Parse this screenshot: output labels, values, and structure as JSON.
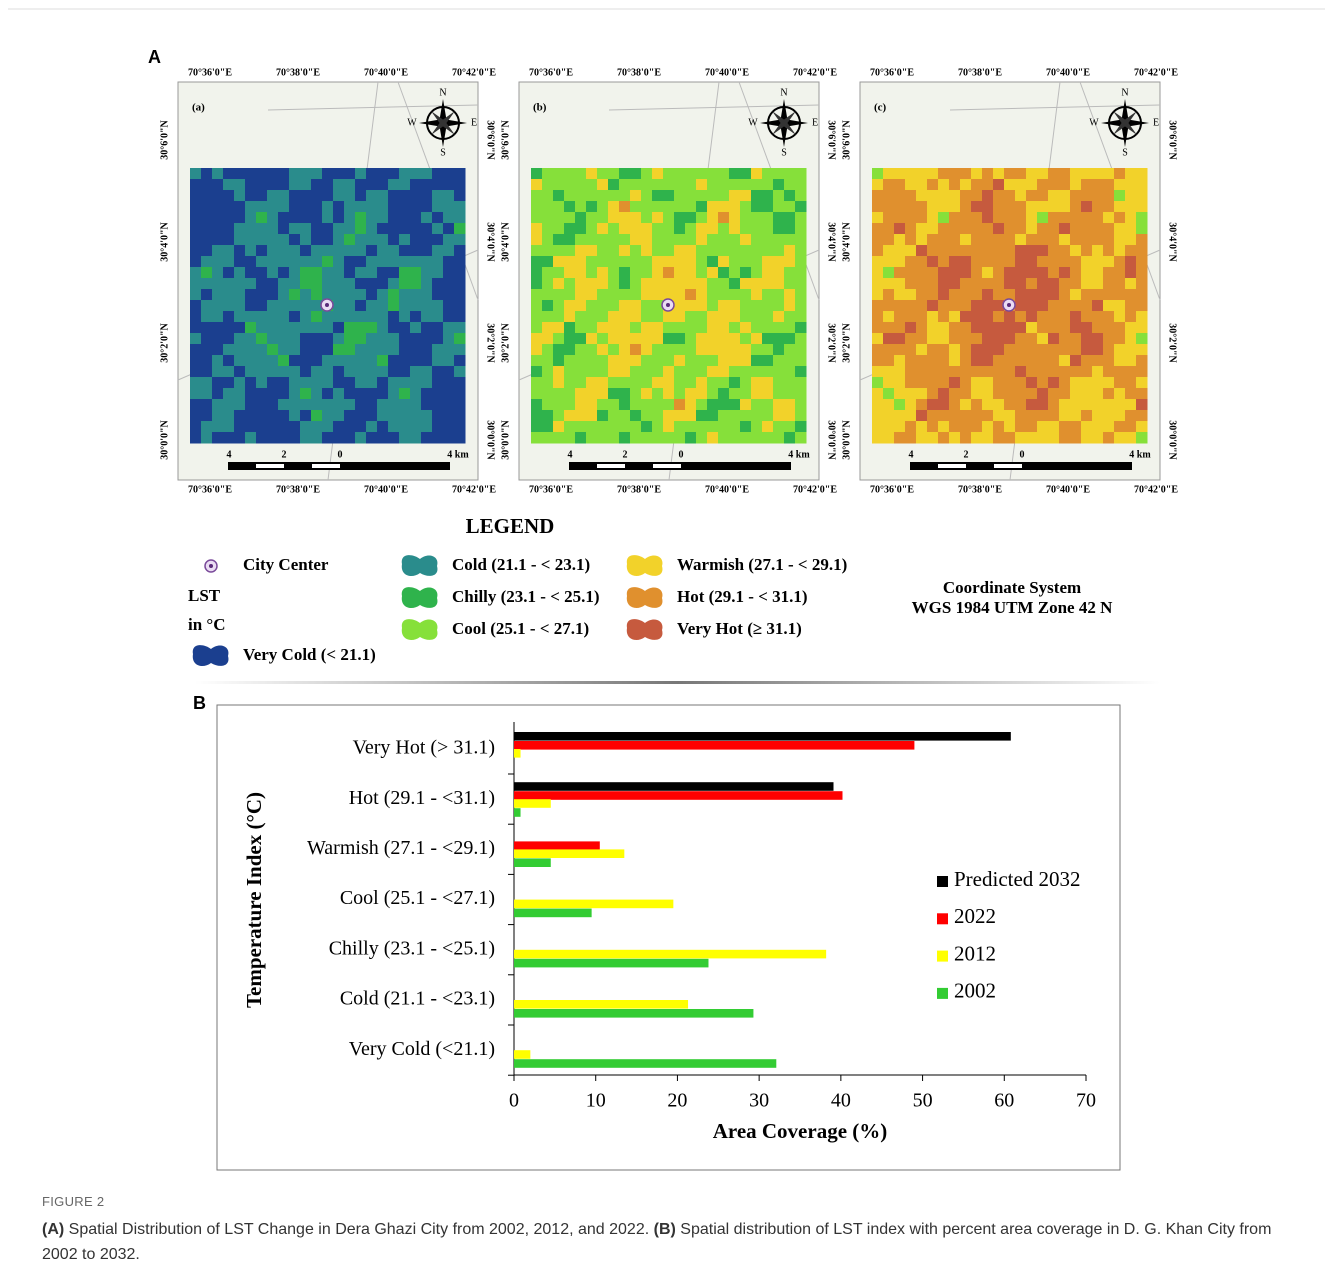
{
  "panel_a": {
    "tag": "A",
    "maps": [
      {
        "label": "(a)"
      },
      {
        "label": "(b)"
      },
      {
        "label": "(c)"
      }
    ],
    "lon_labels": [
      "70°36'0\"E",
      "70°38'0\"E",
      "70°40'0\"E",
      "70°42'0\"E"
    ],
    "lat_labels": [
      "30°6'0\"N",
      "30°4'0\"N",
      "30°2'0\"N",
      "30°0'0\"N"
    ],
    "scale_labels": [
      "4",
      "2",
      "0",
      "4 km"
    ],
    "compass": [
      "N",
      "E",
      "S",
      "W"
    ]
  },
  "legend": {
    "title": "LEGEND",
    "city_center": "City Center",
    "lst": "LST",
    "unit": "in °C",
    "classes": [
      {
        "label": "Very Cold (< 21.1)",
        "color": "#1b3f8f"
      },
      {
        "label": "Cold (21.1 - < 23.1)",
        "color": "#2a8c8c"
      },
      {
        "label": "Chilly (23.1 - < 25.1)",
        "color": "#2fb34c"
      },
      {
        "label": "Cool (25.1 - < 27.1)",
        "color": "#86e03a"
      },
      {
        "label": "Warmish (27.1 - < 29.1)",
        "color": "#f2d22a"
      },
      {
        "label": "Hot (29.1 - < 31.1)",
        "color": "#e0902e"
      },
      {
        "label": "Very Hot (≥ 31.1)",
        "color": "#c65a3e"
      }
    ],
    "coordinate_system": [
      "Coordinate System",
      "WGS 1984 UTM Zone 42 N"
    ]
  },
  "chart_data": {
    "type": "bar",
    "orientation": "horizontal",
    "tag": "B",
    "categories": [
      "Very Hot (> 31.1)",
      "Hot (29.1 - <31.1)",
      "Warmish (27.1 - <29.1)",
      "Cool (25.1 - <27.1)",
      "Chilly (23.1 - <25.1)",
      "Cold (21.1 - <23.1)",
      "Very Cold  (<21.1)"
    ],
    "series": [
      {
        "name": "Predicted 2032",
        "color": "#000000",
        "values": [
          60.8,
          39.1,
          null,
          null,
          null,
          null,
          null
        ]
      },
      {
        "name": "2022",
        "color": "#ff0000",
        "values": [
          49.0,
          40.2,
          10.5,
          null,
          null,
          null,
          null
        ]
      },
      {
        "name": "2012",
        "color": "#ffff00",
        "values": [
          0.8,
          4.5,
          13.5,
          19.5,
          38.2,
          21.3,
          2.0
        ]
      },
      {
        "name": "2002",
        "color": "#33cc33",
        "values": [
          null,
          0.8,
          4.5,
          9.5,
          23.8,
          29.3,
          32.1
        ]
      }
    ],
    "xlim": [
      0,
      70
    ],
    "xticks": [
      0,
      10,
      20,
      30,
      40,
      50,
      60,
      70
    ],
    "xlabel": "Area Coverage (%)",
    "ylabel": "Temperature Index (°C)"
  },
  "caption": {
    "label": "FIGURE 2",
    "a_tag": "(A)",
    "a_text": "Spatial Distribution of LST Change in Dera Ghazi City from 2002, 2012, and 2022.",
    "b_tag": "(B)",
    "b_text": "Spatial distribution of LST index with percent area coverage in D. G. Khan City from 2002 to 2032."
  }
}
